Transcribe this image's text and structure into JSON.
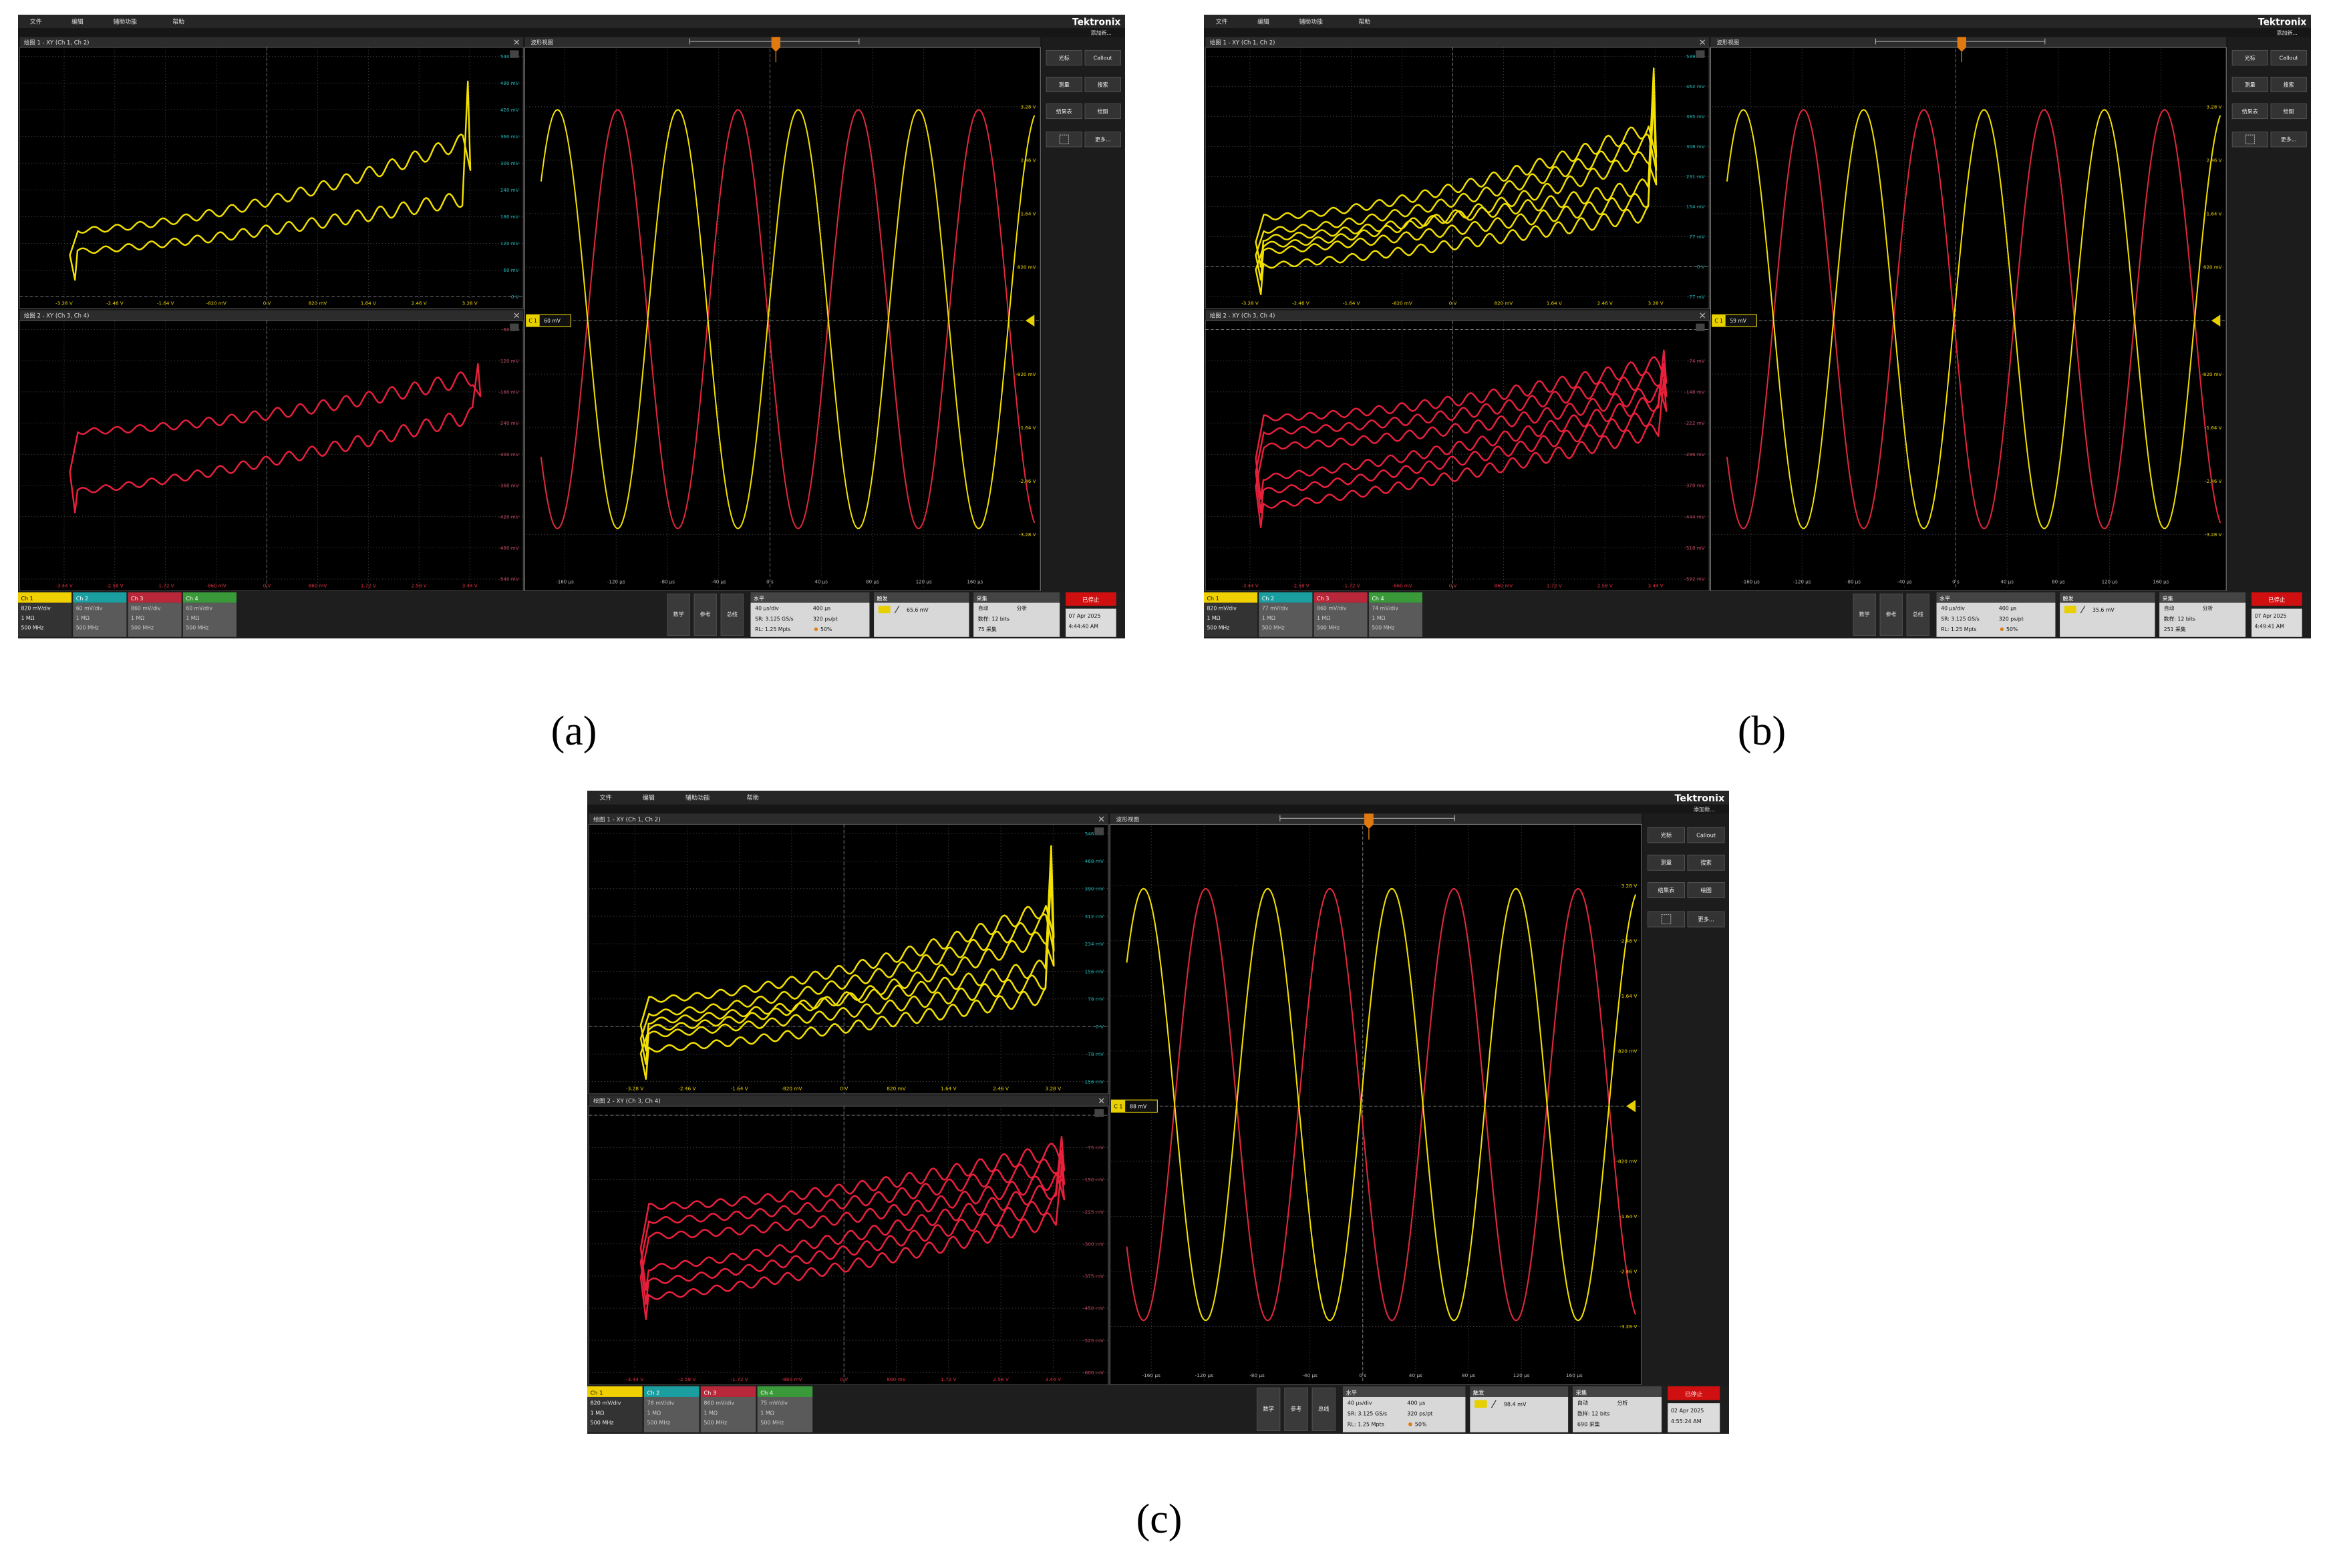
{
  "figure": {
    "panels": [
      {
        "label": "(a)",
        "menu": [
          "文件",
          "编辑",
          "辅助功能",
          "帮助"
        ],
        "brand": "Tektronix",
        "add_new": "添加新...",
        "plot1": {
          "title": "绘图 1 - XY (Ch 1, Ch 2)",
          "x_ticks": [
            "-3.28 V",
            "-2.46 V",
            "-1.64 V",
            "-820 mV",
            "0 V",
            "820 mV",
            "1.64 V",
            "2.46 V",
            "3.28 V"
          ],
          "y_ticks": [
            "540 mV",
            "480 mV",
            "420 mV",
            "360 mV",
            "300 mV",
            "240 mV",
            "180 mV",
            "120 mV",
            "60 mV",
            "0 V"
          ]
        },
        "plot2": {
          "title": "绘图 2 - XY (Ch 3, Ch 4)",
          "x_ticks": [
            "-3.44 V",
            "-2.58 V",
            "-1.72 V",
            "-860 mV",
            "0 V",
            "860 mV",
            "1.72 V",
            "2.58 V",
            "3.44 V"
          ],
          "y_ticks": [
            "-60 mV",
            "-120 mV",
            "-180 mV",
            "-240 mV",
            "-300 mV",
            "-360 mV",
            "-420 mV",
            "-480 mV",
            "-540 mV"
          ]
        },
        "waveform": {
          "title": "波形视图",
          "y_ticks": [
            "3.28 V",
            "2.46 V",
            "1.64 V",
            "820 mV",
            "-820 mV",
            "-1.64 V",
            "-2.46 V",
            "-3.28 V"
          ],
          "x_ticks": [
            "-160 µs",
            "-120 µs",
            "-80 µs",
            "-40 µs",
            "0 s",
            "40 µs",
            "80 µs",
            "120 µs",
            "160 µs"
          ],
          "marker_channel": "C 1",
          "marker_level": "60 mV"
        },
        "side_buttons": [
          "光标",
          "Callout",
          "测量",
          "搜索",
          "结果表",
          "绘图",
          "更多..."
        ],
        "channels": [
          {
            "name": "Ch 1",
            "scale": "820 mV/div",
            "impedance": "1 MΩ",
            "bandwidth": "500 MHz"
          },
          {
            "name": "Ch 2",
            "scale": "60 mV/div",
            "impedance": "1 MΩ",
            "bandwidth": "500 MHz"
          },
          {
            "name": "Ch 3",
            "scale": "860 mV/div",
            "impedance": "1 MΩ",
            "bandwidth": "500 MHz"
          },
          {
            "name": "Ch 4",
            "scale": "60 mV/div",
            "impedance": "1 MΩ",
            "bandwidth": "500 MHz"
          }
        ],
        "bottom_buttons": [
          "数学",
          "参考",
          "总线"
        ],
        "horizontal": {
          "title": "水平",
          "scale": "40 µs/div",
          "duration": "400 µs",
          "sample_rate": "SR: 3.125 GS/s",
          "points": "320 ps/pt",
          "record_length": "RL: 1.25 Mpts",
          "position": "50%"
        },
        "trigger": {
          "title": "触发",
          "level": "65.6 mV"
        },
        "acquisition": {
          "title": "采集",
          "mode": "自动",
          "analysis": "分析",
          "resolution": "数样: 12 bits",
          "count": "75 采集"
        },
        "stop": "已停止",
        "date": "07 Apr 2025",
        "time": "4:44:40 AM"
      },
      {
        "label": "(b)",
        "menu": [
          "文件",
          "编辑",
          "辅助功能",
          "帮助"
        ],
        "brand": "Tektronix",
        "add_new": "添加新...",
        "plot1": {
          "title": "绘图 1 - XY (Ch 1, Ch 2)",
          "x_ticks": [
            "-3.28 V",
            "-2.46 V",
            "-1.64 V",
            "-820 mV",
            "0 V",
            "820 mV",
            "1.64 V",
            "2.46 V",
            "3.28 V"
          ],
          "y_ticks": [
            "539 mV",
            "462 mV",
            "385 mV",
            "308 mV",
            "231 mV",
            "154 mV",
            "77 mV",
            "0 V",
            "-77 mV"
          ]
        },
        "plot2": {
          "title": "绘图 2 - XY (Ch 3, Ch 4)",
          "x_ticks": [
            "-3.44 V",
            "-2.58 V",
            "-1.72 V",
            "-860 mV",
            "0 V",
            "860 mV",
            "1.72 V",
            "2.58 V",
            "3.44 V"
          ],
          "y_ticks": [
            "0 V",
            "-74 mV",
            "-148 mV",
            "-222 mV",
            "-296 mV",
            "-370 mV",
            "-444 mV",
            "-518 mV",
            "-592 mV"
          ]
        },
        "waveform": {
          "title": "波形视图",
          "y_ticks": [
            "3.28 V",
            "2.46 V",
            "1.64 V",
            "820 mV",
            "-820 mV",
            "-1.64 V",
            "-2.46 V",
            "-3.28 V"
          ],
          "x_ticks": [
            "-160 µs",
            "-120 µs",
            "-80 µs",
            "-40 µs",
            "0 s",
            "40 µs",
            "80 µs",
            "120 µs",
            "160 µs"
          ],
          "marker_channel": "C 1",
          "marker_level": "59 mV"
        },
        "side_buttons": [
          "光标",
          "Callout",
          "测量",
          "搜索",
          "结果表",
          "绘图",
          "更多..."
        ],
        "channels": [
          {
            "name": "Ch 1",
            "scale": "820 mV/div",
            "impedance": "1 MΩ",
            "bandwidth": "500 MHz"
          },
          {
            "name": "Ch 2",
            "scale": "77 mV/div",
            "impedance": "1 MΩ",
            "bandwidth": "500 MHz"
          },
          {
            "name": "Ch 3",
            "scale": "860 mV/div",
            "impedance": "1 MΩ",
            "bandwidth": "500 MHz"
          },
          {
            "name": "Ch 4",
            "scale": "74 mV/div",
            "impedance": "1 MΩ",
            "bandwidth": "500 MHz"
          }
        ],
        "bottom_buttons": [
          "数学",
          "参考",
          "总线"
        ],
        "horizontal": {
          "title": "水平",
          "scale": "40 µs/div",
          "duration": "400 µs",
          "sample_rate": "SR: 3.125 GS/s",
          "points": "320 ps/pt",
          "record_length": "RL: 1.25 Mpts",
          "position": "50%"
        },
        "trigger": {
          "title": "触发",
          "level": "35.6 mV"
        },
        "acquisition": {
          "title": "采集",
          "mode": "自动",
          "analysis": "分析",
          "resolution": "数样: 12 bits",
          "count": "251 采集"
        },
        "stop": "已停止",
        "date": "07 Apr 2025",
        "time": "4:49:41 AM"
      },
      {
        "label": "(c)",
        "menu": [
          "文件",
          "编辑",
          "辅助功能",
          "帮助"
        ],
        "brand": "Tektronix",
        "add_new": "添加新...",
        "plot1": {
          "title": "绘图 1 - XY (Ch 1, Ch 2)",
          "x_ticks": [
            "-3.28 V",
            "-2.46 V",
            "-1.64 V",
            "-820 mV",
            "0 V",
            "820 mV",
            "1.64 V",
            "2.46 V",
            "3.28 V"
          ],
          "y_ticks": [
            "546 mV",
            "468 mV",
            "390 mV",
            "312 mV",
            "234 mV",
            "156 mV",
            "78 mV",
            "0 V",
            "-78 mV",
            "-156 mV"
          ]
        },
        "plot2": {
          "title": "绘图 2 - XY (Ch 3, Ch 4)",
          "x_ticks": [
            "-3.44 V",
            "-2.58 V",
            "-1.72 V",
            "-860 mV",
            "0 V",
            "860 mV",
            "1.72 V",
            "2.58 V",
            "3.44 V"
          ],
          "y_ticks": [
            "0 V",
            "-75 mV",
            "-150 mV",
            "-225 mV",
            "-300 mV",
            "-375 mV",
            "-450 mV",
            "-525 mV",
            "-600 mV"
          ]
        },
        "waveform": {
          "title": "波形视图",
          "y_ticks": [
            "3.28 V",
            "2.46 V",
            "1.64 V",
            "820 mV",
            "-820 mV",
            "-1.64 V",
            "-2.46 V",
            "-3.28 V"
          ],
          "x_ticks": [
            "-160 µs",
            "-120 µs",
            "-80 µs",
            "-40 µs",
            "0 s",
            "40 µs",
            "80 µs",
            "120 µs",
            "160 µs"
          ],
          "marker_channel": "C 1",
          "marker_level": "88 mV"
        },
        "side_buttons": [
          "光标",
          "Callout",
          "测量",
          "搜索",
          "结果表",
          "绘图",
          "更多..."
        ],
        "channels": [
          {
            "name": "Ch 1",
            "scale": "820 mV/div",
            "impedance": "1 MΩ",
            "bandwidth": "500 MHz"
          },
          {
            "name": "Ch 2",
            "scale": "78 mV/div",
            "impedance": "1 MΩ",
            "bandwidth": "500 MHz"
          },
          {
            "name": "Ch 3",
            "scale": "860 mV/div",
            "impedance": "1 MΩ",
            "bandwidth": "500 MHz"
          },
          {
            "name": "Ch 4",
            "scale": "75 mV/div",
            "impedance": "1 MΩ",
            "bandwidth": "500 MHz"
          }
        ],
        "bottom_buttons": [
          "数学",
          "参考",
          "总线"
        ],
        "horizontal": {
          "title": "水平",
          "scale": "40 µs/div",
          "duration": "400 µs",
          "sample_rate": "SR: 3.125 GS/s",
          "points": "320 ps/pt",
          "record_length": "RL: 1.25 Mpts",
          "position": "50%"
        },
        "trigger": {
          "title": "触发",
          "level": "98.4 mV"
        },
        "acquisition": {
          "title": "采集",
          "mode": "自动",
          "analysis": "分析",
          "resolution": "数样: 12 bits",
          "count": "690 采集"
        },
        "stop": "已停止",
        "date": "02 Apr 2025",
        "time": "4:55:24 AM"
      }
    ]
  }
}
